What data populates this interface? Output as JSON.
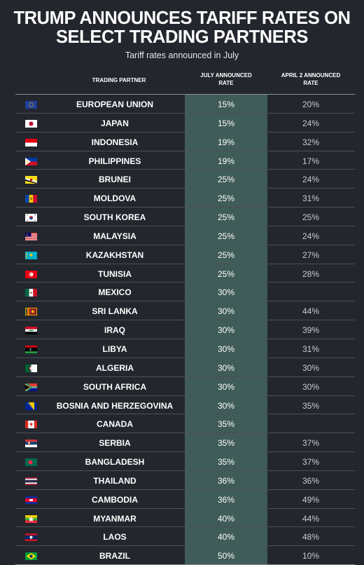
{
  "title_line1": "TRUMP ANNOUNCES TARIFF RATES ON",
  "title_line2": "SELECT TRADING PARTNERS",
  "subtitle": "Tariff rates announced in July",
  "columns": {
    "partner": "TRADING PARTNER",
    "july_1": "JULY ANNOUNCED",
    "july_2": "RATE",
    "april_1": "APRIL 2 ANNOUNCED",
    "april_2": "RATE"
  },
  "colors": {
    "background": "#23262d",
    "highlight_column": "#3f5c58"
  },
  "chart_data": {
    "type": "table",
    "title": "TRUMP ANNOUNCES TARIFF RATES ON SELECT TRADING PARTNERS",
    "subtitle": "Tariff rates announced in July",
    "rows": [
      {
        "partner": "EUROPEAN UNION",
        "flag": "eu",
        "july": "15%",
        "april": "20%"
      },
      {
        "partner": "JAPAN",
        "flag": "jp",
        "july": "15%",
        "april": "24%"
      },
      {
        "partner": "INDONESIA",
        "flag": "id",
        "july": "19%",
        "april": "32%"
      },
      {
        "partner": "PHILIPPINES",
        "flag": "ph",
        "july": "19%",
        "april": "17%"
      },
      {
        "partner": "BRUNEI",
        "flag": "bn",
        "july": "25%",
        "april": "24%"
      },
      {
        "partner": "MOLDOVA",
        "flag": "md",
        "july": "25%",
        "april": "31%"
      },
      {
        "partner": "SOUTH KOREA",
        "flag": "kr",
        "july": "25%",
        "april": "25%"
      },
      {
        "partner": "MALAYSIA",
        "flag": "my",
        "july": "25%",
        "april": "24%"
      },
      {
        "partner": "KAZAKHSTAN",
        "flag": "kz",
        "july": "25%",
        "april": "27%"
      },
      {
        "partner": "TUNISIA",
        "flag": "tn",
        "july": "25%",
        "april": "28%"
      },
      {
        "partner": "MEXICO",
        "flag": "mx",
        "july": "30%",
        "april": ""
      },
      {
        "partner": "SRI LANKA",
        "flag": "lk",
        "july": "30%",
        "april": "44%"
      },
      {
        "partner": "IRAQ",
        "flag": "iq",
        "july": "30%",
        "april": "39%"
      },
      {
        "partner": "LIBYA",
        "flag": "ly",
        "july": "30%",
        "april": "31%"
      },
      {
        "partner": "ALGERIA",
        "flag": "dz",
        "july": "30%",
        "april": "30%"
      },
      {
        "partner": "SOUTH AFRICA",
        "flag": "za",
        "july": "30%",
        "april": "30%"
      },
      {
        "partner": "BOSNIA AND HERZEGOVINA",
        "flag": "ba",
        "july": "30%",
        "april": "35%"
      },
      {
        "partner": "CANADA",
        "flag": "ca",
        "july": "35%",
        "april": ""
      },
      {
        "partner": "SERBIA",
        "flag": "rs",
        "july": "35%",
        "april": "37%"
      },
      {
        "partner": "BANGLADESH",
        "flag": "bd",
        "july": "35%",
        "april": "37%"
      },
      {
        "partner": "THAILAND",
        "flag": "th",
        "july": "36%",
        "april": "36%"
      },
      {
        "partner": "CAMBODIA",
        "flag": "kh",
        "july": "36%",
        "april": "49%"
      },
      {
        "partner": "MYANMAR",
        "flag": "mm",
        "july": "40%",
        "april": "44%"
      },
      {
        "partner": "LAOS",
        "flag": "la",
        "july": "40%",
        "april": "48%"
      },
      {
        "partner": "BRAZIL",
        "flag": "br",
        "july": "50%",
        "april": "10%"
      }
    ]
  }
}
